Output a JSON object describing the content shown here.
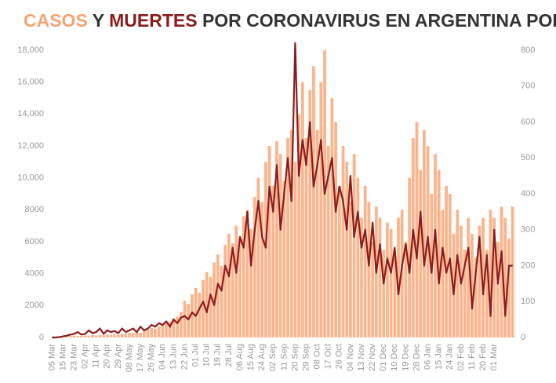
{
  "chart_data": {
    "type": "bar-line",
    "title": [
      {
        "text": "CASOS",
        "color": "#f4a373"
      },
      {
        "text": "Y",
        "color": "#333333"
      },
      {
        "text": "MUERTES",
        "color": "#8b1c1c"
      },
      {
        "text": "POR CORONAVIRUS EN ARGENTINA POR DÍA",
        "color": "#333333"
      }
    ],
    "categories": [
      "05 Mar",
      null,
      null,
      "15 Mar",
      null,
      null,
      "23 Mar",
      null,
      null,
      "02 Apr",
      null,
      null,
      "11 Apr",
      null,
      null,
      "20 Apr",
      null,
      null,
      "29 Apr",
      null,
      null,
      "08 May",
      null,
      null,
      "17 May",
      null,
      null,
      "26 May",
      null,
      null,
      "04 Jun",
      null,
      null,
      "13 Jun",
      null,
      null,
      "22 Jun",
      null,
      null,
      "01 Jul",
      null,
      null,
      "10 Jul",
      null,
      null,
      "19 Jul",
      null,
      null,
      "28 Jul",
      null,
      null,
      "06 Aug",
      null,
      null,
      "15 Aug",
      null,
      null,
      "24 Aug",
      null,
      null,
      "02 Sep",
      null,
      null,
      "11 Sep",
      null,
      null,
      "20 Sep",
      null,
      null,
      "29 Sep",
      null,
      null,
      "08 Oct",
      null,
      null,
      "17 Oct",
      null,
      null,
      "26 Oct",
      null,
      null,
      "04 Nov",
      null,
      null,
      "13 Nov",
      null,
      null,
      "22 Nov",
      null,
      null,
      "01 Dec",
      null,
      null,
      "10 Dec",
      null,
      null,
      "19 Dec",
      null,
      null,
      "28 Dec",
      null,
      null,
      "06 Jan",
      null,
      null,
      "15 Jan",
      null,
      null,
      "24 Jan",
      null,
      null,
      "02 Feb",
      null,
      null,
      "11 Feb",
      null,
      null,
      "20 Feb",
      null,
      null,
      "01 Mar",
      null,
      null,
      null,
      null,
      null
    ],
    "series": [
      {
        "name": "CASOS",
        "kind": "bar",
        "color": "#fbb48c",
        "values": [
          0,
          20,
          50,
          90,
          100,
          110,
          120,
          90,
          100,
          130,
          110,
          150,
          120,
          160,
          140,
          180,
          170,
          200,
          160,
          250,
          230,
          300,
          280,
          350,
          300,
          450,
          500,
          600,
          550,
          700,
          800,
          900,
          1000,
          1200,
          1300,
          1600,
          2300,
          2100,
          2700,
          3100,
          2800,
          3600,
          4100,
          3800,
          4700,
          5200,
          4500,
          5800,
          6500,
          5900,
          7000,
          6200,
          7600,
          8000,
          6800,
          8800,
          10000,
          8500,
          11000,
          12000,
          9500,
          12300,
          11500,
          9800,
          12500,
          13000,
          11000,
          14000,
          16000,
          12500,
          15500,
          17000,
          13000,
          16000,
          18000,
          12000,
          15000,
          13500,
          9500,
          12000,
          11000,
          8500,
          11500,
          10000,
          7500,
          9500,
          8500,
          6000,
          8200,
          7500,
          5500,
          7200,
          6800,
          5000,
          7500,
          8000,
          6000,
          10000,
          12500,
          13500,
          10500,
          13000,
          12000,
          9000,
          11500,
          10500,
          8000,
          9500,
          9000,
          6500,
          8000,
          7000,
          5500,
          7500,
          6500,
          5000,
          7000,
          7500,
          5500,
          8000,
          7500,
          6000,
          8200,
          7500,
          6200,
          8200
        ]
      },
      {
        "name": "MUERTES",
        "kind": "line",
        "axis": "y2",
        "color": "#8b1c1c",
        "values": [
          0,
          0,
          1,
          3,
          5,
          8,
          10,
          15,
          8,
          10,
          20,
          12,
          15,
          25,
          10,
          20,
          15,
          18,
          12,
          25,
          15,
          20,
          25,
          15,
          30,
          20,
          25,
          35,
          30,
          40,
          35,
          45,
          30,
          50,
          40,
          55,
          60,
          50,
          70,
          60,
          80,
          100,
          70,
          120,
          90,
          150,
          130,
          200,
          170,
          250,
          180,
          280,
          250,
          350,
          200,
          300,
          380,
          280,
          250,
          420,
          350,
          480,
          300,
          400,
          500,
          380,
          820,
          450,
          550,
          480,
          600,
          420,
          480,
          550,
          400,
          450,
          500,
          350,
          420,
          380,
          300,
          450,
          280,
          350,
          250,
          300,
          200,
          320,
          180,
          260,
          150,
          220,
          180,
          250,
          120,
          200,
          260,
          180,
          300,
          220,
          350,
          200,
          280,
          180,
          300,
          150,
          250,
          180,
          220,
          120,
          230,
          150,
          200,
          250,
          80,
          180,
          280,
          120,
          230,
          60,
          300,
          150,
          240,
          60,
          200,
          200
        ]
      }
    ],
    "ylim": [
      0,
      18000
    ],
    "yticks": [
      0,
      2000,
      4000,
      6000,
      8000,
      {
        "value": 10000,
        "label": "10,000"
      },
      {
        "value": 12000,
        "label": "12,000"
      },
      {
        "value": 14000,
        "label": "14,000"
      },
      {
        "value": 16000,
        "label": "16,000"
      },
      {
        "value": 18000,
        "label": "18,000"
      }
    ],
    "y2lim": [
      0,
      800
    ],
    "y2ticks": [
      0,
      100,
      200,
      300,
      400,
      500,
      600,
      700,
      800
    ]
  }
}
